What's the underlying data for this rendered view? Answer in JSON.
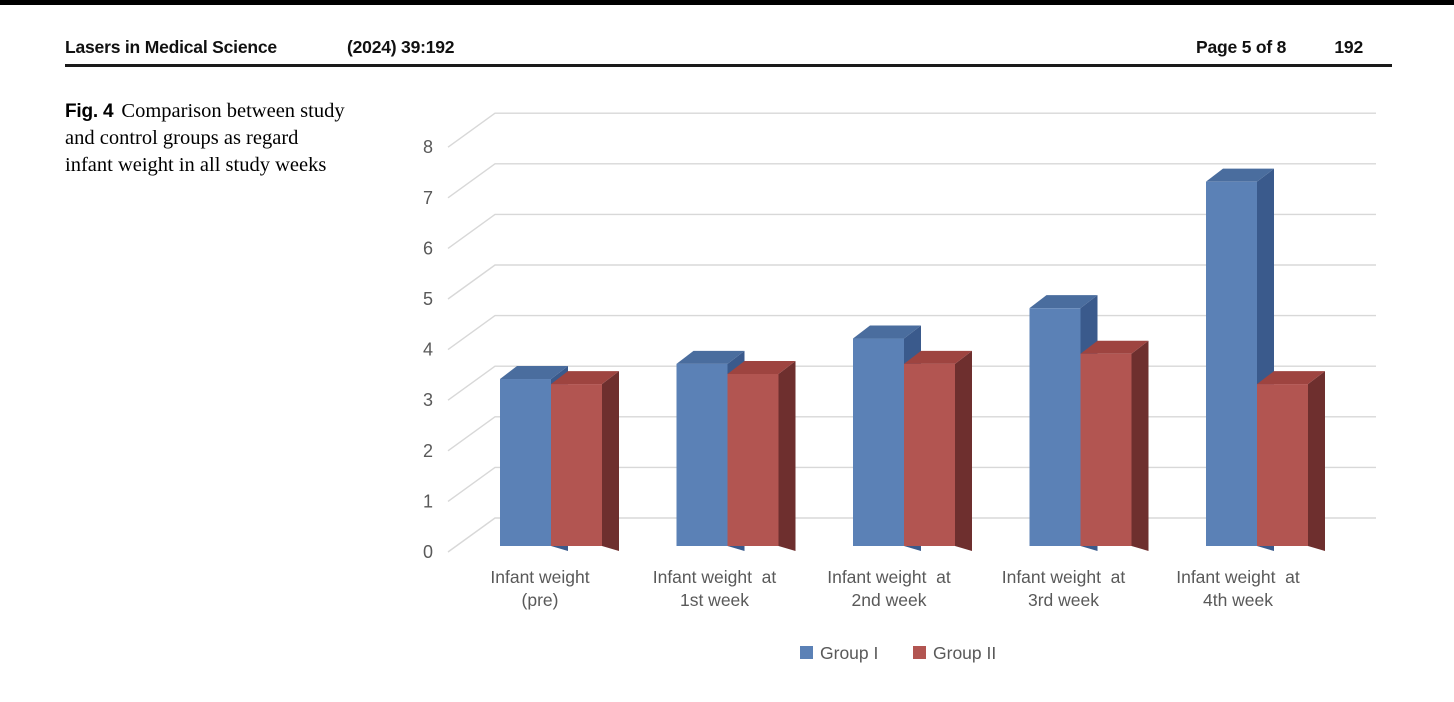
{
  "header": {
    "journal": "Lasers in Medical Science",
    "issue": "(2024) 39:192",
    "page_info": "Page 5 of 8",
    "article_id": "192"
  },
  "caption": {
    "label": "Fig. 4",
    "text": "Comparison between study and control groups as regard infant weight in all study weeks",
    "lines": [
      "Comparison between study",
      "and control groups as regard",
      "infant weight in all study weeks"
    ]
  },
  "chart_data": {
    "type": "bar",
    "style": "3d-clustered-column",
    "title": "",
    "xlabel": "",
    "ylabel": "",
    "categories": [
      "Infant weight (pre)",
      "Infant weight  at 1st week",
      "Infant weight  at 2nd week",
      "Infant weight  at 3rd week",
      "Infant weight  at 4th week"
    ],
    "category_label_lines": [
      [
        "Infant weight",
        "(pre)"
      ],
      [
        "Infant weight  at",
        "1st week"
      ],
      [
        "Infant weight  at",
        "2nd week"
      ],
      [
        "Infant weight  at",
        "3rd week"
      ],
      [
        "Infant weight  at",
        "4th week"
      ]
    ],
    "series": [
      {
        "name": "Group I",
        "values": [
          3.3,
          3.6,
          4.1,
          4.7,
          7.2
        ],
        "color": "#5B81B6"
      },
      {
        "name": "Group II",
        "values": [
          3.2,
          3.4,
          3.6,
          3.8,
          3.2
        ],
        "color": "#B25551"
      }
    ],
    "ylim": [
      0,
      8
    ],
    "yticks": [
      0,
      1,
      2,
      3,
      4,
      5,
      6,
      7,
      8
    ],
    "grid": true,
    "legend_position": "bottom",
    "colors": {
      "group1_front": "#5B81B6",
      "group1_top": "#4A6D9E",
      "group1_side": "#3A5A8C",
      "group2_front": "#B25551",
      "group2_top": "#9E4440",
      "group2_side": "#6E2F2E",
      "gridline": "#D8D8D8",
      "axis_text": "#595959"
    }
  }
}
